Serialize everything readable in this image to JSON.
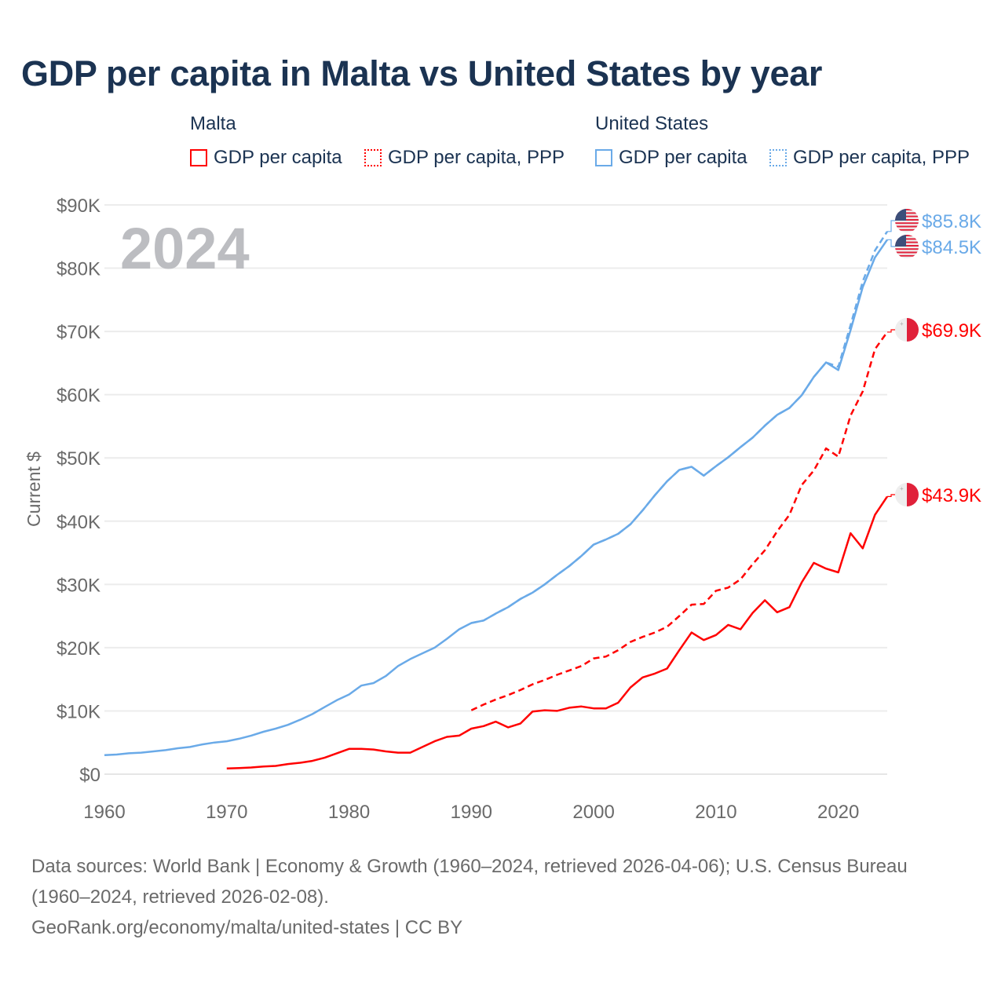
{
  "title": "GDP per capita in Malta vs United States by year",
  "legend": {
    "groups": [
      {
        "name": "Malta",
        "items": [
          "GDP per capita",
          "GDP per capita, PPP"
        ]
      },
      {
        "name": "United States",
        "items": [
          "GDP per capita",
          "GDP per capita, PPP"
        ]
      }
    ]
  },
  "colors": {
    "malta": "#ff0000",
    "us": "#6aaae8"
  },
  "footer": {
    "line1": "Data sources: World Bank | Economy & Growth (1960–2024, retrieved 2026-04-06); U.S. Census Bureau",
    "line2": "(1960–2024, retrieved 2026-02-08).",
    "line3": "GeoRank.org/economy/malta/united-states | CC BY"
  },
  "chart_data": {
    "type": "line",
    "title": "GDP per capita in Malta vs United States by year",
    "year_watermark": "2024",
    "ylabel": "Current $",
    "xlim": [
      1960,
      2024
    ],
    "ylim": [
      0,
      90000
    ],
    "x_ticks": [
      "1960",
      "1970",
      "1980",
      "1990",
      "2000",
      "2010",
      "2020"
    ],
    "y_ticks": [
      "$0",
      "$10K",
      "$20K",
      "$30K",
      "$40K",
      "$50K",
      "$60K",
      "$70K",
      "$80K",
      "$90K"
    ],
    "grid": true,
    "series": [
      {
        "name": "United States GDP per capita",
        "country": "us",
        "dashed": false,
        "start": 1960,
        "end_label": "$84.5K",
        "values": [
          3.0,
          3.1,
          3.3,
          3.4,
          3.6,
          3.8,
          4.1,
          4.3,
          4.7,
          5.0,
          5.2,
          5.6,
          6.1,
          6.7,
          7.2,
          7.8,
          8.6,
          9.5,
          10.6,
          11.7,
          12.6,
          14.0,
          14.4,
          15.5,
          17.1,
          18.2,
          19.1,
          20.0,
          21.4,
          22.9,
          23.9,
          24.3,
          25.4,
          26.4,
          27.7,
          28.7,
          30.0,
          31.5,
          32.9,
          34.5,
          36.3,
          37.1,
          38.0,
          39.5,
          41.7,
          44.1,
          46.3,
          48.1,
          48.6,
          47.2,
          48.7,
          50.1,
          51.7,
          53.2,
          55.1,
          56.8,
          57.9,
          59.9,
          62.8,
          65.1,
          63.9,
          70.2,
          77.0,
          81.7,
          84.5
        ]
      },
      {
        "name": "United States GDP per capita, PPP",
        "country": "us",
        "dashed": true,
        "start": 1990,
        "end_label": "$85.8K",
        "values": [
          23.9,
          24.3,
          25.4,
          26.4,
          27.7,
          28.7,
          30.0,
          31.5,
          32.9,
          34.5,
          36.3,
          37.1,
          38.0,
          39.5,
          41.7,
          44.1,
          46.3,
          48.1,
          48.6,
          47.2,
          48.7,
          50.1,
          51.7,
          53.2,
          55.1,
          56.8,
          57.9,
          59.9,
          62.8,
          65.1,
          64.4,
          71.0,
          77.9,
          82.8,
          85.8
        ]
      },
      {
        "name": "Malta GDP per capita, PPP",
        "country": "malta",
        "dashed": true,
        "start": 1990,
        "end_label": "$69.9K",
        "values": [
          10.1,
          11.0,
          11.8,
          12.5,
          13.3,
          14.2,
          14.9,
          15.7,
          16.4,
          17.1,
          18.3,
          18.6,
          19.6,
          20.9,
          21.7,
          22.4,
          23.3,
          25.0,
          26.8,
          26.9,
          29.0,
          29.5,
          30.8,
          33.2,
          35.4,
          38.4,
          41.0,
          45.7,
          48.0,
          51.5,
          50.2,
          56.7,
          60.5,
          67.2,
          69.9
        ]
      },
      {
        "name": "Malta GDP per capita",
        "country": "malta",
        "dashed": false,
        "start": 1970,
        "end_label": "$43.9K",
        "values": [
          0.9,
          0.95,
          1.05,
          1.2,
          1.3,
          1.6,
          1.8,
          2.1,
          2.6,
          3.3,
          4.0,
          4.0,
          3.9,
          3.6,
          3.4,
          3.4,
          4.3,
          5.2,
          5.9,
          6.1,
          7.2,
          7.6,
          8.3,
          7.4,
          8.0,
          9.9,
          10.1,
          10.0,
          10.5,
          10.7,
          10.4,
          10.4,
          11.3,
          13.7,
          15.3,
          15.9,
          16.7,
          19.6,
          22.4,
          21.2,
          22.0,
          23.6,
          22.9,
          25.5,
          27.5,
          25.6,
          26.4,
          30.3,
          33.4,
          32.5,
          31.9,
          38.1,
          35.7,
          41.0,
          43.9
        ]
      }
    ],
    "value_unit": "thousand USD"
  }
}
